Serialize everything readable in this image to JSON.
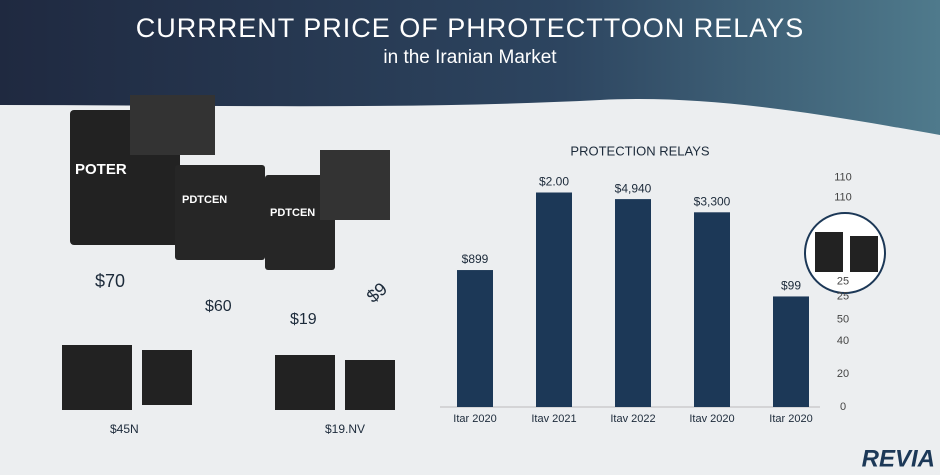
{
  "header": {
    "title": "CURRRENT PRICE OF PHROTECTTOON RELAYS",
    "subtitle": "in the Iranian Market"
  },
  "products": {
    "labels": [
      "POTER",
      "PDTCEN",
      "PDTCEN"
    ],
    "prices": [
      "$70",
      "$60",
      "$19",
      "$9",
      "$45N",
      "$19.NV"
    ]
  },
  "logo": "REVIA",
  "chart_data": {
    "type": "bar",
    "title": "PROTECTION RELAYS",
    "categories": [
      "Itar 2020",
      "Itav 2021",
      "Itav 2022",
      "Itav 2020",
      "Itar 2020"
    ],
    "values": [
      83,
      130,
      126,
      118,
      67
    ],
    "labels": [
      "$899",
      "$2.00",
      "$4,940",
      "$3,300",
      "$99"
    ],
    "color": "#1c3857",
    "ylim": [
      0,
      140
    ],
    "yticks": [
      0,
      20,
      40,
      {
        "value": 53,
        "label": "50"
      },
      {
        "value": 67,
        "label": "25"
      },
      {
        "value": 76,
        "label": "25"
      },
      {
        "value": 127,
        "label": "110"
      },
      {
        "value": 139,
        "label": "110"
      }
    ]
  }
}
